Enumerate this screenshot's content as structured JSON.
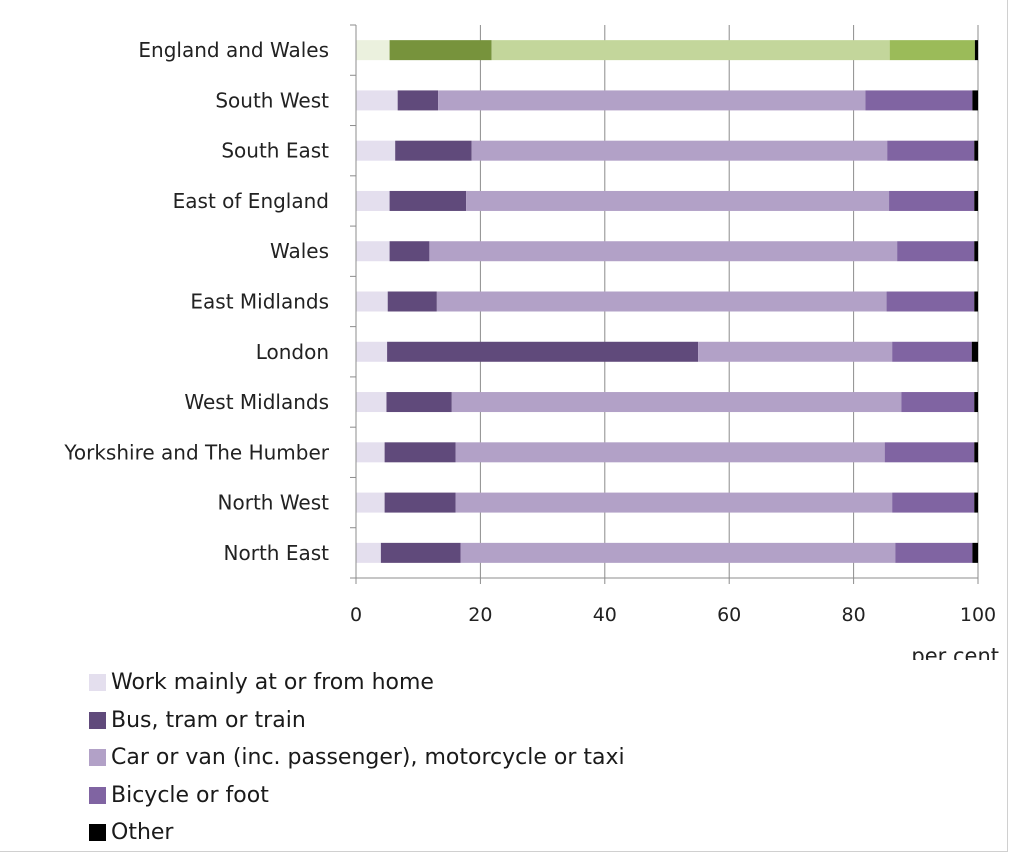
{
  "chart_data": {
    "type": "bar",
    "orientation": "horizontal",
    "stacked": true,
    "title": "",
    "xlabel": "per cent",
    "ylabel": "",
    "xlim": [
      0,
      100
    ],
    "xticks": [
      "0",
      "20",
      "40",
      "60",
      "80",
      "100"
    ],
    "grid": true,
    "legend_position": "bottom",
    "categories": [
      "England and Wales",
      "South West",
      "South East",
      "East of England",
      "Wales",
      "East Midlands",
      "London",
      "West Midlands",
      "Yorkshire and The Humber",
      "North West",
      "North East"
    ],
    "series": [
      {
        "name": "Work mainly at or from home",
        "color": "#e4dfee",
        "values": [
          5.4,
          6.7,
          6.3,
          5.4,
          5.4,
          5.1,
          5.0,
          4.9,
          4.6,
          4.6,
          4.0
        ]
      },
      {
        "name": "Bus, tram or train",
        "color": "#604a7b",
        "values": [
          16.4,
          6.5,
          12.3,
          12.3,
          6.4,
          7.9,
          50.0,
          10.5,
          11.4,
          11.4,
          12.8
        ]
      },
      {
        "name": "Car or van (inc. passenger), motorcycle or taxi",
        "color": "#b2a1c7",
        "values": [
          64.0,
          68.7,
          66.8,
          68.0,
          75.2,
          72.3,
          31.2,
          72.3,
          69.0,
          70.2,
          69.9
        ]
      },
      {
        "name": "Bicycle or foot",
        "color": "#8064a2",
        "values": [
          13.7,
          17.2,
          14.0,
          13.7,
          12.4,
          14.1,
          12.8,
          11.7,
          14.4,
          13.2,
          12.4
        ]
      },
      {
        "name": "Other",
        "color": "#000000",
        "values": [
          0.5,
          0.9,
          0.6,
          0.6,
          0.6,
          0.6,
          1.0,
          0.6,
          0.6,
          0.6,
          0.9
        ]
      }
    ],
    "highlight_category": "England and Wales",
    "highlight_colors": [
      "#ebf1de",
      "#77933c",
      "#c3d69b",
      "#9bbb59",
      "#000000"
    ]
  }
}
